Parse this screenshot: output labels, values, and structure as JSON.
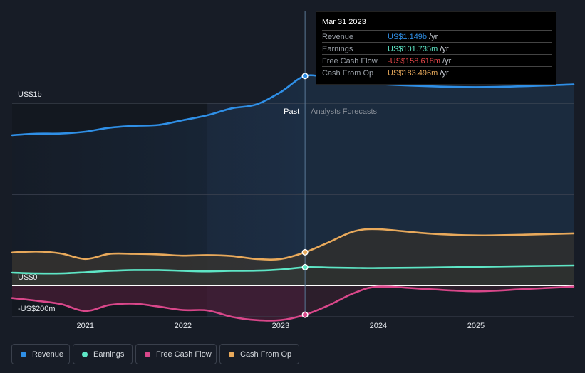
{
  "chart_data": {
    "type": "area",
    "title": "",
    "y_axis": {
      "labels": [
        "US$1b",
        "US$0",
        "-US$200m"
      ],
      "ylim": [
        -250,
        1320
      ]
    },
    "x_axis": {
      "labels": [
        "2021",
        "2022",
        "2023",
        "2024",
        "2025"
      ],
      "xlim": [
        2020.25,
        2026.0
      ]
    },
    "divider": {
      "x": 2023.25,
      "past_label": "Past",
      "forecast_label": "Analysts Forecasts"
    },
    "series": [
      {
        "name": "Revenue",
        "color": "#2f8fe6",
        "x": [
          2020.25,
          2020.5,
          2020.75,
          2021.0,
          2021.25,
          2021.5,
          2021.75,
          2022.0,
          2022.25,
          2022.5,
          2022.75,
          2023.0,
          2023.25,
          2023.5,
          2023.75,
          2024.0,
          2024.5,
          2025.0,
          2025.5,
          2026.0
        ],
        "values": [
          825,
          833,
          834,
          844,
          866,
          876,
          881,
          907,
          934,
          972,
          993,
          1061,
          1149,
          1137,
          1121,
          1105,
          1093,
          1088,
          1093,
          1103
        ]
      },
      {
        "name": "Earnings",
        "color": "#5ee6c6",
        "x": [
          2020.25,
          2020.5,
          2020.75,
          2021.0,
          2021.25,
          2021.5,
          2021.75,
          2022.0,
          2022.25,
          2022.5,
          2022.75,
          2023.0,
          2023.25,
          2023.5,
          2023.75,
          2024.0,
          2024.5,
          2025.0,
          2025.5,
          2026.0
        ],
        "values": [
          72,
          68,
          68,
          74,
          82,
          86,
          86,
          82,
          79,
          82,
          83,
          89,
          101.735,
          100,
          98,
          97,
          100,
          104,
          108,
          111
        ]
      },
      {
        "name": "Free Cash Flow",
        "color": "#d9478a",
        "x": [
          2020.25,
          2020.5,
          2020.75,
          2021.0,
          2021.25,
          2021.5,
          2021.75,
          2022.0,
          2022.25,
          2022.5,
          2022.75,
          2023.0,
          2023.25,
          2023.5,
          2023.75,
          2024.0,
          2024.5,
          2025.0,
          2025.5,
          2026.0
        ],
        "values": [
          -67,
          -82,
          -100,
          -138,
          -105,
          -98,
          -114,
          -133,
          -135,
          -170,
          -188,
          -188,
          -158.618,
          -105,
          -40,
          -5,
          -18,
          -30,
          -18,
          -5
        ]
      },
      {
        "name": "Cash From Op",
        "color": "#e8a95b",
        "x": [
          2020.25,
          2020.5,
          2020.75,
          2021.0,
          2021.25,
          2021.5,
          2021.75,
          2022.0,
          2022.25,
          2022.5,
          2022.75,
          2023.0,
          2023.25,
          2023.5,
          2023.75,
          2024.0,
          2024.5,
          2025.0,
          2025.5,
          2026.0
        ],
        "values": [
          182,
          188,
          177,
          147,
          175,
          175,
          172,
          165,
          168,
          163,
          147,
          147,
          183.496,
          240,
          298,
          310,
          287,
          276,
          280,
          287
        ]
      }
    ]
  },
  "tooltip": {
    "date": "Mar 31 2023",
    "rows": [
      {
        "label": "Revenue",
        "value": "US$1.149b",
        "unit": " /yr",
        "color": "#2f8fe6"
      },
      {
        "label": "Earnings",
        "value": "US$101.735m",
        "unit": " /yr",
        "color": "#5ee6c6"
      },
      {
        "label": "Free Cash Flow",
        "value": "-US$158.618m",
        "unit": " /yr",
        "color": "#e8474a"
      },
      {
        "label": "Cash From Op",
        "value": "US$183.496m",
        "unit": " /yr",
        "color": "#e8a95b"
      }
    ]
  },
  "legend": [
    {
      "label": "Revenue",
      "color": "#2f8fe6"
    },
    {
      "label": "Earnings",
      "color": "#5ee6c6"
    },
    {
      "label": "Free Cash Flow",
      "color": "#d9478a"
    },
    {
      "label": "Cash From Op",
      "color": "#e8a95b"
    }
  ]
}
